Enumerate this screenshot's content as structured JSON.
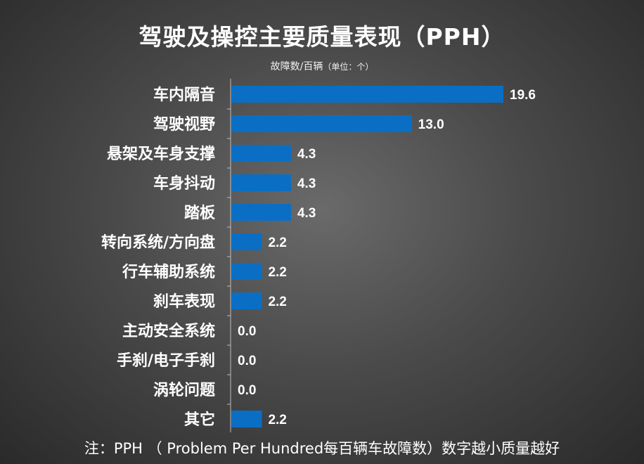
{
  "title": "驾驶及操控主要质量表现（PPH）",
  "subtitle": {
    "main": "故障数/百辆",
    "unit": "（单位：个）"
  },
  "note": "注：PPH （ Problem Per Hundred每百辆车故障数）数字越小质量越好",
  "colors": {
    "bar": "#0a6fc4",
    "axis": "#bdbdbd",
    "text": "#ffffff"
  },
  "chart_data": {
    "type": "bar",
    "orientation": "horizontal",
    "categories": [
      "车内隔音",
      "驾驶视野",
      "悬架及车身支撑",
      "车身抖动",
      "踏板",
      "转向系统/方向盘",
      "行车辅助系统",
      "刹车表现",
      "主动安全系统",
      "手刹/电子手刹",
      "涡轮问题",
      "其它"
    ],
    "values": [
      19.6,
      13.0,
      4.3,
      4.3,
      4.3,
      2.2,
      2.2,
      2.2,
      0.0,
      0.0,
      0.0,
      2.2
    ],
    "value_labels": [
      "19.6",
      "13.0",
      "4.3",
      "4.3",
      "4.3",
      "2.2",
      "2.2",
      "2.2",
      "0.0",
      "0.0",
      "0.0",
      "2.2"
    ],
    "xlim": [
      0,
      19.6
    ],
    "grid": false,
    "legend": "none"
  }
}
